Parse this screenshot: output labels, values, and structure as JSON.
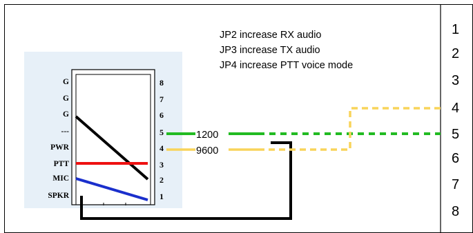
{
  "notes": [
    "JP2 increase RX audio",
    "JP3 increase TX audio",
    "JP4 increase PTT voice mode"
  ],
  "connector": {
    "left_labels": [
      "G",
      "G",
      "G",
      "---",
      "PWR",
      "PTT",
      "MIC",
      "SPKR"
    ],
    "pin_numbers": [
      "8",
      "7",
      "6",
      "5",
      "4",
      "3",
      "2",
      "1"
    ]
  },
  "wires": {
    "label_1200": "1200",
    "label_9600": "9600"
  },
  "right_pins": [
    "1",
    "2",
    "3",
    "4",
    "5",
    "6",
    "7",
    "8"
  ],
  "colors": {
    "panel_bg": "#e7f0f8",
    "green": "#22bb22",
    "yellow": "#f8d45a",
    "red": "#ee1111",
    "blue": "#1a2fcc",
    "black": "#000000"
  }
}
